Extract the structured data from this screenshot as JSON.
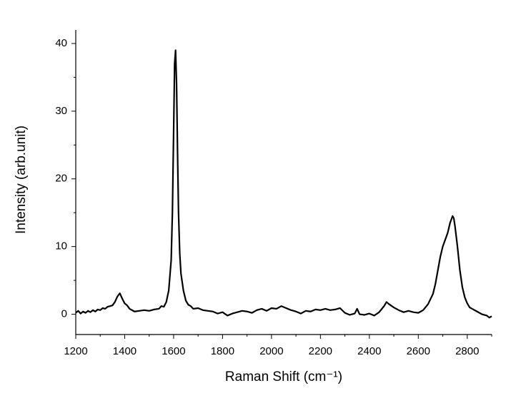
{
  "chart_data": {
    "type": "line",
    "xlabel": "Raman Shift (cm⁻¹)",
    "ylabel": "Intensity (arb.unit)",
    "xlim": [
      1200,
      2900
    ],
    "ylim": [
      -3,
      42
    ],
    "xticks": [
      1200,
      1400,
      1600,
      1800,
      2000,
      2200,
      2400,
      2600,
      2800
    ],
    "yticks": [
      0,
      10,
      20,
      30,
      40
    ],
    "xminorticks": [
      1300,
      1500,
      1700,
      1900,
      2100,
      2300,
      2500,
      2700,
      2900
    ],
    "yminorticks": [
      5,
      15,
      25,
      35
    ],
    "series": [
      {
        "color": "#000000",
        "x": [
          1200,
          1210,
          1220,
          1230,
          1240,
          1250,
          1260,
          1270,
          1280,
          1290,
          1300,
          1310,
          1320,
          1330,
          1340,
          1350,
          1360,
          1370,
          1380,
          1390,
          1400,
          1410,
          1420,
          1440,
          1460,
          1480,
          1500,
          1520,
          1540,
          1550,
          1560,
          1570,
          1580,
          1590,
          1595,
          1600,
          1604,
          1608,
          1612,
          1616,
          1620,
          1625,
          1630,
          1640,
          1650,
          1660,
          1670,
          1680,
          1700,
          1720,
          1740,
          1760,
          1780,
          1800,
          1820,
          1840,
          1860,
          1880,
          1900,
          1920,
          1940,
          1960,
          1980,
          2000,
          2020,
          2040,
          2060,
          2080,
          2100,
          2120,
          2140,
          2160,
          2180,
          2200,
          2220,
          2240,
          2260,
          2280,
          2300,
          2320,
          2340,
          2350,
          2360,
          2380,
          2400,
          2420,
          2440,
          2460,
          2470,
          2480,
          2500,
          2520,
          2540,
          2560,
          2580,
          2600,
          2620,
          2640,
          2660,
          2670,
          2680,
          2690,
          2700,
          2710,
          2720,
          2730,
          2740,
          2745,
          2750,
          2760,
          2770,
          2780,
          2790,
          2800,
          2810,
          2820,
          2840,
          2860,
          2880,
          2890,
          2900
        ],
        "values": [
          0.2,
          0.5,
          0.1,
          0.4,
          0.2,
          0.5,
          0.3,
          0.6,
          0.4,
          0.7,
          0.6,
          0.9,
          0.8,
          1.1,
          1.2,
          1.3,
          1.8,
          2.6,
          3.1,
          2.3,
          1.6,
          1.3,
          0.8,
          0.4,
          0.5,
          0.6,
          0.5,
          0.7,
          0.8,
          1.2,
          1.1,
          1.8,
          3.5,
          8,
          15,
          27,
          37,
          39,
          34,
          24,
          15,
          9,
          6,
          3.5,
          2,
          1.4,
          1.2,
          0.8,
          0.9,
          0.6,
          0.5,
          0.4,
          0.1,
          0.3,
          -0.2,
          0.1,
          0.3,
          0.5,
          0.4,
          0.2,
          0.6,
          0.8,
          0.5,
          0.9,
          0.8,
          1.2,
          0.9,
          0.6,
          0.4,
          0.1,
          0.5,
          0.4,
          0.7,
          0.6,
          0.8,
          0.6,
          0.7,
          0.9,
          0.2,
          -0.1,
          0.1,
          0.8,
          0,
          -0.1,
          0.1,
          -0.2,
          0.3,
          1.2,
          1.8,
          1.5,
          1.0,
          0.6,
          0.3,
          0.5,
          0.3,
          0.2,
          0.6,
          1.5,
          3,
          4.5,
          6.5,
          8.5,
          10,
          11,
          12,
          13.5,
          14.5,
          14.2,
          13,
          10,
          6.5,
          4,
          2.5,
          1.6,
          1,
          0.8,
          0.4,
          0,
          -0.2,
          -0.5,
          -0.3
        ]
      }
    ]
  }
}
